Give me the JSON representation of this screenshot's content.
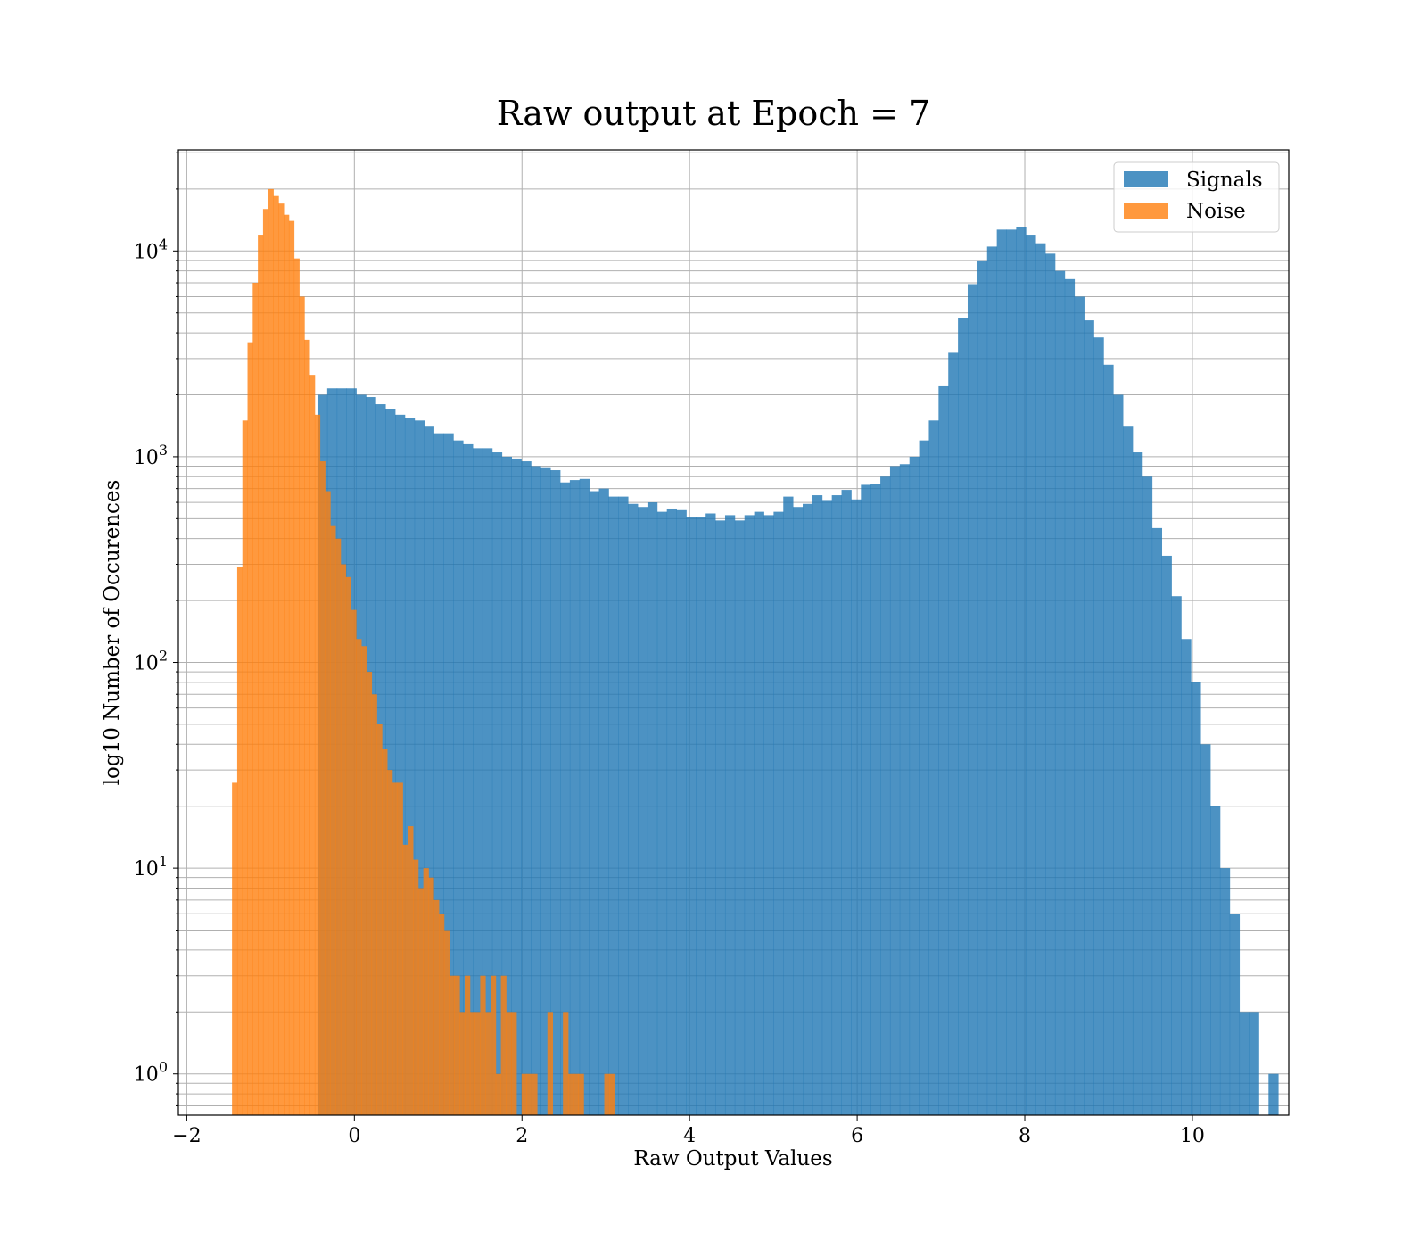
{
  "chart_data": {
    "type": "bar",
    "title": "Raw output at Epoch = 7",
    "xlabel": "Raw Output Values",
    "ylabel": "log10 Number of Occurences",
    "xlim": [
      -2.1,
      11.15
    ],
    "ylim": [
      0.63,
      31000
    ],
    "yscale": "log",
    "grid": true,
    "legend_position": "top-right",
    "x_ticks": [
      -2,
      0,
      2,
      4,
      6,
      8,
      10
    ],
    "x_tick_labels": [
      "−2",
      "0",
      "2",
      "4",
      "6",
      "8",
      "10"
    ],
    "y_ticks": [
      {
        "value": 1,
        "base": "10",
        "exp": "0"
      },
      {
        "value": 10,
        "base": "10",
        "exp": "1"
      },
      {
        "value": 100,
        "base": "10",
        "exp": "2"
      },
      {
        "value": 1000,
        "base": "10",
        "exp": "3"
      },
      {
        "value": 10000,
        "base": "10",
        "exp": "4"
      }
    ],
    "series": [
      {
        "name": "Signals",
        "color": "#1f77b4",
        "bin_start": -0.44,
        "bin_width": 0.1158,
        "values": [
          2000,
          2150,
          2150,
          2150,
          2000,
          1950,
          1800,
          1700,
          1600,
          1550,
          1500,
          1400,
          1300,
          1300,
          1200,
          1150,
          1100,
          1100,
          1050,
          1000,
          980,
          950,
          900,
          880,
          860,
          750,
          770,
          780,
          680,
          700,
          640,
          640,
          590,
          570,
          600,
          540,
          560,
          550,
          510,
          510,
          530,
          490,
          520,
          490,
          520,
          540,
          520,
          540,
          640,
          570,
          590,
          650,
          610,
          650,
          690,
          620,
          730,
          740,
          800,
          900,
          920,
          1000,
          1200,
          1500,
          2200,
          3200,
          4700,
          6900,
          9000,
          10500,
          12700,
          12700,
          13100,
          12000,
          10900,
          9700,
          8000,
          7300,
          6000,
          4600,
          3800,
          2800,
          2000,
          1400,
          1050,
          800,
          450,
          330,
          210,
          130,
          80,
          40,
          20,
          10,
          6,
          2,
          2,
          0,
          1
        ],
        "error_text": ""
      },
      {
        "name": "Noise",
        "color": "#ff7f0e",
        "bin_start": -1.46,
        "bin_width": 0.0617,
        "values": [
          26,
          290,
          1500,
          3600,
          7000,
          12000,
          16000,
          20000,
          18500,
          17000,
          15000,
          14000,
          9200,
          6000,
          3700,
          2500,
          1600,
          950,
          680,
          460,
          400,
          300,
          260,
          180,
          130,
          120,
          90,
          70,
          50,
          38,
          30,
          26,
          26,
          13,
          16,
          11,
          8,
          10,
          9,
          7,
          6,
          5,
          3,
          3,
          2,
          3,
          2,
          2,
          3,
          2,
          3,
          1,
          3,
          2,
          2,
          0,
          1,
          1,
          1,
          0,
          0,
          2,
          0,
          0,
          2,
          1,
          1,
          1,
          0,
          0,
          0,
          0,
          1,
          1,
          0,
          0,
          0,
          0
        ]
      }
    ]
  }
}
